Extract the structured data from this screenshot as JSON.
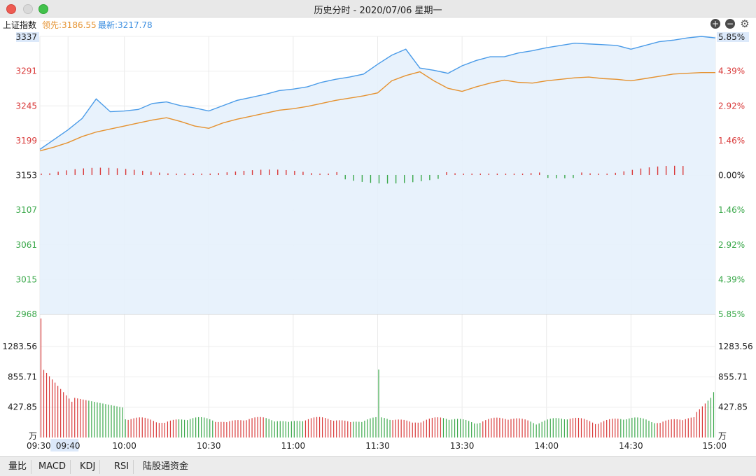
{
  "window": {
    "title": "历史分时 - 2020/07/06 星期一",
    "controls": [
      "close",
      "minimize",
      "maximize"
    ]
  },
  "info": {
    "index_name": "上证指数",
    "lead": "领先:3186.55",
    "latest": "最新:3217.78"
  },
  "toolbar_icons": [
    "zoom-in-icon",
    "zoom-out-icon",
    "gear-icon"
  ],
  "tabs": [
    "量比",
    "MACD",
    "KDJ",
    "RSI",
    "陆股通资金"
  ],
  "colors": {
    "price_line": "#4a9be8",
    "lead_line": "#e59230",
    "up": "#d93a3a",
    "down": "#3aa84a",
    "area_fill": "#e6f1fc"
  },
  "chart_data": [
    {
      "type": "line",
      "title": "",
      "x_ticks": [
        "09:30",
        "09:40",
        "10:00",
        "10:30",
        "11:00",
        "11:30",
        "13:30",
        "14:00",
        "14:30",
        "15:00"
      ],
      "x_highlight": "09:40",
      "y_ticks_left": [
        "3337",
        "3291",
        "3245",
        "3199",
        "3153",
        "3107",
        "3061",
        "3015",
        "2968"
      ],
      "y_ticks_right": [
        "5.85%",
        "4.39%",
        "2.92%",
        "1.46%",
        "0.00%",
        "1.46%",
        "2.92%",
        "4.39%",
        "5.85%"
      ],
      "ylim": [
        2968,
        3337
      ],
      "prev_close": 3153,
      "series": [
        {
          "name": "最新",
          "x": [
            "09:30",
            "09:35",
            "09:40",
            "09:45",
            "09:50",
            "09:55",
            "10:00",
            "10:05",
            "10:10",
            "10:15",
            "10:20",
            "10:25",
            "10:30",
            "10:35",
            "10:40",
            "10:45",
            "10:50",
            "10:55",
            "11:00",
            "11:05",
            "11:10",
            "11:15",
            "11:20",
            "11:25",
            "11:30",
            "13:05",
            "13:10",
            "13:15",
            "13:20",
            "13:25",
            "13:30",
            "13:35",
            "13:40",
            "13:45",
            "13:50",
            "13:55",
            "14:00",
            "14:05",
            "14:10",
            "14:15",
            "14:20",
            "14:25",
            "14:30",
            "14:35",
            "14:40",
            "14:45",
            "14:50",
            "14:55",
            "15:00"
          ],
          "values": [
            3187,
            3200,
            3213,
            3228,
            3254,
            3237,
            3238,
            3240,
            3248,
            3250,
            3245,
            3242,
            3238,
            3245,
            3252,
            3256,
            3260,
            3265,
            3267,
            3270,
            3276,
            3280,
            3283,
            3287,
            3300,
            3312,
            3320,
            3295,
            3292,
            3288,
            3298,
            3305,
            3310,
            3310,
            3315,
            3318,
            3322,
            3325,
            3328,
            3327,
            3326,
            3325,
            3320,
            3325,
            3330,
            3332,
            3335,
            3337,
            3335
          ]
        },
        {
          "name": "领先",
          "x": [
            "09:30",
            "09:35",
            "09:40",
            "09:45",
            "09:50",
            "09:55",
            "10:00",
            "10:05",
            "10:10",
            "10:15",
            "10:20",
            "10:25",
            "10:30",
            "10:35",
            "10:40",
            "10:45",
            "10:50",
            "10:55",
            "11:00",
            "11:05",
            "11:10",
            "11:15",
            "11:20",
            "11:25",
            "11:30",
            "13:05",
            "13:10",
            "13:15",
            "13:20",
            "13:25",
            "13:30",
            "13:35",
            "13:40",
            "13:45",
            "13:50",
            "13:55",
            "14:00",
            "14:05",
            "14:10",
            "14:15",
            "14:20",
            "14:25",
            "14:30",
            "14:35",
            "14:40",
            "14:45",
            "14:50",
            "14:55",
            "15:00"
          ],
          "values": [
            3185,
            3190,
            3196,
            3204,
            3210,
            3214,
            3218,
            3222,
            3226,
            3229,
            3224,
            3218,
            3215,
            3222,
            3227,
            3231,
            3235,
            3239,
            3241,
            3244,
            3248,
            3252,
            3255,
            3258,
            3262,
            3278,
            3285,
            3290,
            3278,
            3268,
            3264,
            3270,
            3275,
            3279,
            3276,
            3275,
            3278,
            3280,
            3282,
            3283,
            3281,
            3280,
            3278,
            3281,
            3284,
            3287,
            3288,
            3289,
            3289
          ]
        }
      ]
    },
    {
      "type": "bar",
      "title": "",
      "y_ticks_left": [
        "1283.56",
        "855.71",
        "427.85",
        "万"
      ],
      "y_ticks_right": [
        "1283.56",
        "855.71",
        "427.85",
        "万"
      ],
      "ylim": [
        0,
        1700
      ],
      "unit": "万"
    }
  ]
}
